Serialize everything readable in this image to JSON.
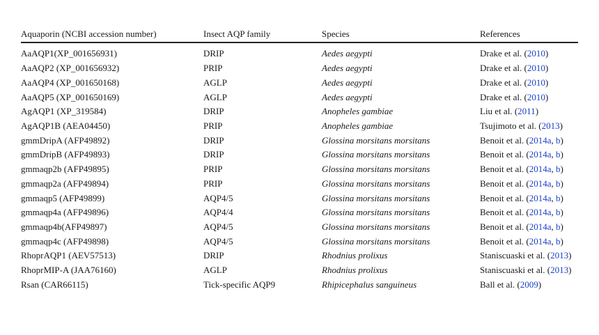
{
  "table": {
    "headers": [
      "Aquaporin (NCBI accession number)",
      "Insect AQP family",
      "Species",
      "References"
    ],
    "rows": [
      {
        "aquaporin": "AaAQP1(XP_001656931)",
        "family": "DRIP",
        "species": "Aedes aegypti",
        "ref_pre": "Drake et al. (",
        "ref_link": "2010",
        "ref_mid": "",
        "ref_link2": "",
        "ref_post": ")"
      },
      {
        "aquaporin": "AaAQP2 (XP_001656932)",
        "family": "PRIP",
        "species": "Aedes aegypti",
        "ref_pre": "Drake et al. (",
        "ref_link": "2010",
        "ref_mid": "",
        "ref_link2": "",
        "ref_post": ")"
      },
      {
        "aquaporin": "AaAQP4 (XP_001650168)",
        "family": "AGLP",
        "species": "Aedes aegypti",
        "ref_pre": "Drake et al. (",
        "ref_link": "2010",
        "ref_mid": "",
        "ref_link2": "",
        "ref_post": ")"
      },
      {
        "aquaporin": "AaAQP5 (XP_001650169)",
        "family": "AGLP",
        "species": "Aedes aegypti",
        "ref_pre": "Drake et al. (",
        "ref_link": "2010",
        "ref_mid": "",
        "ref_link2": "",
        "ref_post": ")"
      },
      {
        "aquaporin": "AgAQP1 (XP_319584)",
        "family": "DRIP",
        "species": "Anopheles gambiae",
        "ref_pre": "Liu et al. (",
        "ref_link": "2011",
        "ref_mid": "",
        "ref_link2": "",
        "ref_post": ")"
      },
      {
        "aquaporin": "AgAQP1B (AEA04450)",
        "family": "PRIP",
        "species": "Anopheles gambiae",
        "ref_pre": "Tsujimoto et al. (",
        "ref_link": "2013",
        "ref_mid": "",
        "ref_link2": "",
        "ref_post": ")"
      },
      {
        "aquaporin": "gmmDripA (AFP49892)",
        "family": "DRIP",
        "species": "Glossina morsitans morsitans",
        "ref_pre": "Benoit et al. (",
        "ref_link": "2014a",
        "ref_mid": ", ",
        "ref_link2": "b",
        "ref_post": ")"
      },
      {
        "aquaporin": "gmmDripB (AFP49893)",
        "family": "DRIP",
        "species": "Glossina morsitans morsitans",
        "ref_pre": "Benoit et al. (",
        "ref_link": "2014a",
        "ref_mid": ", ",
        "ref_link2": "b",
        "ref_post": ")"
      },
      {
        "aquaporin": "gmmaqp2b (AFP49895)",
        "family": "PRIP",
        "species": "Glossina morsitans morsitans",
        "ref_pre": "Benoit et al. (",
        "ref_link": "2014a",
        "ref_mid": ", ",
        "ref_link2": "b",
        "ref_post": ")"
      },
      {
        "aquaporin": "gmmaqp2a (AFP49894)",
        "family": "PRIP",
        "species": "Glossina morsitans morsitans",
        "ref_pre": "Benoit et al. (",
        "ref_link": "2014a",
        "ref_mid": ", ",
        "ref_link2": "b",
        "ref_post": ")"
      },
      {
        "aquaporin": "gmmaqp5 (AFP49899)",
        "family": "AQP4/5",
        "species": "Glossina morsitans morsitans",
        "ref_pre": "Benoit et al. (",
        "ref_link": "2014a",
        "ref_mid": ", ",
        "ref_link2": "b",
        "ref_post": ")"
      },
      {
        "aquaporin": "gmmaqp4a (AFP49896)",
        "family": "AQP4/4",
        "species": "Glossina morsitans morsitans",
        "ref_pre": "Benoit et al. (",
        "ref_link": "2014a",
        "ref_mid": ", ",
        "ref_link2": "b",
        "ref_post": ")"
      },
      {
        "aquaporin": "gmmaqp4b(AFP49897)",
        "family": "AQP4/5",
        "species": "Glossina morsitans morsitans",
        "ref_pre": "Benoit et al. (",
        "ref_link": "2014a",
        "ref_mid": ", ",
        "ref_link2": "b",
        "ref_post": ")"
      },
      {
        "aquaporin": "gmmaqp4c (AFP49898)",
        "family": "AQP4/5",
        "species": "Glossina morsitans morsitans",
        "ref_pre": "Benoit et al. (",
        "ref_link": "2014a",
        "ref_mid": ", ",
        "ref_link2": "b",
        "ref_post": ")"
      },
      {
        "aquaporin": "RhoprAQP1 (AEV57513)",
        "family": "DRIP",
        "species": "Rhodnius prolixus",
        "ref_pre": "Staniscuaski et al. (",
        "ref_link": "2013",
        "ref_mid": "",
        "ref_link2": "",
        "ref_post": ")"
      },
      {
        "aquaporin": "RhoprMIP-A (JAA76160)",
        "family": "AGLP",
        "species": "Rhodnius prolixus",
        "ref_pre": "Staniscuaski et al. (",
        "ref_link": "2013",
        "ref_mid": "",
        "ref_link2": "",
        "ref_post": ")"
      },
      {
        "aquaporin": "Rsan (CAR66115)",
        "family": "Tick-specific AQP9",
        "species": "Rhipicephalus sanguineus",
        "ref_pre": "Ball et al. (",
        "ref_link": "2009",
        "ref_mid": "",
        "ref_link2": "",
        "ref_post": ")"
      }
    ]
  },
  "colors": {
    "text": "#1a1a1a",
    "link": "#1a3fc8",
    "rule": "#222222"
  }
}
